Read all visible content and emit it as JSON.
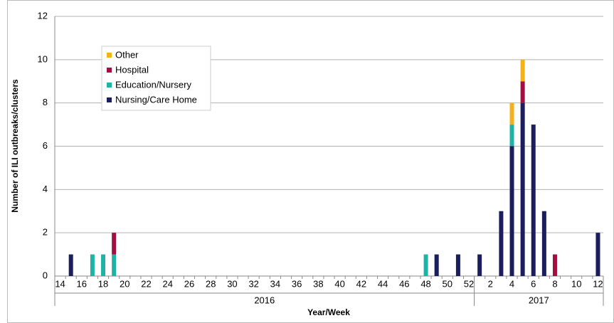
{
  "chart_data": {
    "type": "stacked_bar",
    "y_label": "Number of ILI outbreaks/clusters",
    "x_label": "Year/Week",
    "categories": [
      "14",
      null,
      "16",
      null,
      "18",
      null,
      "20",
      null,
      "22",
      null,
      "24",
      null,
      "26",
      null,
      "28",
      null,
      "30",
      null,
      "32",
      null,
      "34",
      null,
      "36",
      null,
      "38",
      null,
      "40",
      null,
      "42",
      null,
      "44",
      null,
      "46",
      null,
      "48",
      null,
      "50",
      null,
      "52",
      null,
      "2",
      null,
      "4",
      null,
      "6",
      null,
      "8",
      null,
      "10",
      null,
      "12"
    ],
    "groups": [
      {
        "label": "2016",
        "size": 39
      },
      {
        "label": "2017",
        "size": 12
      }
    ],
    "series": [
      {
        "name": "Nursing/Care Home",
        "color": "#1b1d5c",
        "values": [
          0,
          1,
          0,
          0,
          0,
          0,
          0,
          0,
          0,
          0,
          0,
          0,
          0,
          0,
          0,
          0,
          0,
          0,
          0,
          0,
          0,
          0,
          0,
          0,
          0,
          0,
          0,
          0,
          0,
          0,
          0,
          0,
          0,
          0,
          0,
          1,
          0,
          1,
          0,
          1,
          0,
          3,
          6,
          8,
          7,
          3,
          0,
          0,
          0,
          0,
          2
        ]
      },
      {
        "name": "Education/Nursery",
        "color": "#1fb3a6",
        "values": [
          0,
          0,
          0,
          1,
          1,
          1,
          0,
          0,
          0,
          0,
          0,
          0,
          0,
          0,
          0,
          0,
          0,
          0,
          0,
          0,
          0,
          0,
          0,
          0,
          0,
          0,
          0,
          0,
          0,
          0,
          0,
          0,
          0,
          0,
          1,
          0,
          0,
          0,
          0,
          0,
          0,
          0,
          1,
          0,
          0,
          0,
          0,
          0,
          0,
          0,
          0
        ]
      },
      {
        "name": "Hospital",
        "color": "#a3103f",
        "values": [
          0,
          0,
          0,
          0,
          0,
          1,
          0,
          0,
          0,
          0,
          0,
          0,
          0,
          0,
          0,
          0,
          0,
          0,
          0,
          0,
          0,
          0,
          0,
          0,
          0,
          0,
          0,
          0,
          0,
          0,
          0,
          0,
          0,
          0,
          0,
          0,
          0,
          0,
          0,
          0,
          0,
          0,
          0,
          1,
          0,
          0,
          1,
          0,
          0,
          0,
          0
        ]
      },
      {
        "name": "Other",
        "color": "#f3b21c",
        "values": [
          0,
          0,
          0,
          0,
          0,
          0,
          0,
          0,
          0,
          0,
          0,
          0,
          0,
          0,
          0,
          0,
          0,
          0,
          0,
          0,
          0,
          0,
          0,
          0,
          0,
          0,
          0,
          0,
          0,
          0,
          0,
          0,
          0,
          0,
          0,
          0,
          0,
          0,
          0,
          0,
          0,
          0,
          1,
          1,
          0,
          0,
          0,
          0,
          0,
          0,
          0
        ]
      }
    ],
    "ylim": [
      0,
      12
    ],
    "yticks": [
      0,
      2,
      4,
      6,
      8,
      10,
      12
    ],
    "grid": true
  }
}
